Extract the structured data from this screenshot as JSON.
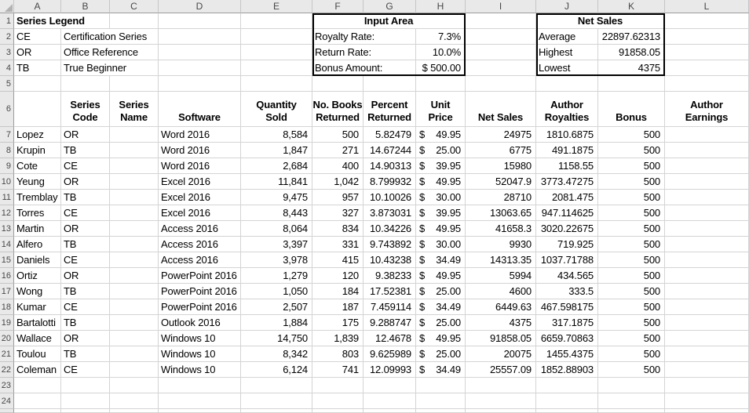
{
  "colors": {
    "header_bg": "#e9e9e9",
    "gridline": "#d4d4d4",
    "header_border": "#9d9d9d",
    "cell_text": "#000000",
    "summary_box_border": "#000000"
  },
  "sheet": {
    "column_letters": [
      "A",
      "B",
      "C",
      "D",
      "E",
      "F",
      "G",
      "H",
      "I",
      "J",
      "K",
      "L"
    ],
    "row_numbers": [
      1,
      2,
      3,
      4,
      5,
      6,
      7,
      8,
      9,
      10,
      11,
      12,
      13,
      14,
      15,
      16,
      17,
      18,
      19,
      20,
      21,
      22,
      23,
      24
    ]
  },
  "legend": {
    "title": "Series Legend",
    "entries": [
      {
        "code": "CE",
        "name": "Certification Series"
      },
      {
        "code": "OR",
        "name": "Office Reference"
      },
      {
        "code": "TB",
        "name": "True Beginner"
      }
    ]
  },
  "input_area": {
    "title": "Input Area",
    "rows": [
      {
        "label": "Royalty Rate:",
        "value": "7.3%"
      },
      {
        "label": "Return Rate:",
        "value": "10.0%"
      },
      {
        "label": "Bonus Amount:",
        "value": "$ 500.00"
      }
    ]
  },
  "net_sales": {
    "title": "Net Sales",
    "rows": [
      {
        "label": "Average",
        "value": "22897.62313"
      },
      {
        "label": "Highest",
        "value": "91858.05"
      },
      {
        "label": "Lowest",
        "value": "4375"
      }
    ]
  },
  "table": {
    "currency_symbol": "$",
    "headers": [
      {
        "col": "B",
        "lines": [
          "Series",
          "Code"
        ]
      },
      {
        "col": "C",
        "lines": [
          "Series",
          "Name"
        ]
      },
      {
        "col": "D",
        "lines": [
          "Software"
        ]
      },
      {
        "col": "E",
        "lines": [
          "Quantity",
          "Sold"
        ]
      },
      {
        "col": "F",
        "lines": [
          "No. Books",
          "Returned"
        ]
      },
      {
        "col": "G",
        "lines": [
          "Percent",
          "Returned"
        ]
      },
      {
        "col": "H",
        "lines": [
          "Unit",
          "Price"
        ]
      },
      {
        "col": "I",
        "lines": [
          "Net Sales"
        ]
      },
      {
        "col": "J",
        "lines": [
          "Author",
          "Royalties"
        ]
      },
      {
        "col": "K",
        "lines": [
          "Bonus"
        ]
      },
      {
        "col": "L",
        "lines": [
          "Author",
          "Earnings"
        ]
      }
    ],
    "rows": [
      {
        "author": "Lopez",
        "code": "OR",
        "software": "Word 2016",
        "quantity": "8,584",
        "returned": "500",
        "percent": "5.82479",
        "price": "49.95",
        "net_sales": "24975",
        "royalties": "1810.6875",
        "bonus": "500"
      },
      {
        "author": "Krupin",
        "code": "TB",
        "software": "Word 2016",
        "quantity": "1,847",
        "returned": "271",
        "percent": "14.67244",
        "price": "25.00",
        "net_sales": "6775",
        "royalties": "491.1875",
        "bonus": "500"
      },
      {
        "author": "Cote",
        "code": "CE",
        "software": "Word 2016",
        "quantity": "2,684",
        "returned": "400",
        "percent": "14.90313",
        "price": "39.95",
        "net_sales": "15980",
        "royalties": "1158.55",
        "bonus": "500"
      },
      {
        "author": "Yeung",
        "code": "OR",
        "software": "Excel 2016",
        "quantity": "11,841",
        "returned": "1,042",
        "percent": "8.799932",
        "price": "49.95",
        "net_sales": "52047.9",
        "royalties": "3773.47275",
        "bonus": "500"
      },
      {
        "author": "Tremblay",
        "code": "TB",
        "software": "Excel 2016",
        "quantity": "9,475",
        "returned": "957",
        "percent": "10.10026",
        "price": "30.00",
        "net_sales": "28710",
        "royalties": "2081.475",
        "bonus": "500"
      },
      {
        "author": "Torres",
        "code": "CE",
        "software": "Excel 2016",
        "quantity": "8,443",
        "returned": "327",
        "percent": "3.873031",
        "price": "39.95",
        "net_sales": "13063.65",
        "royalties": "947.114625",
        "bonus": "500"
      },
      {
        "author": "Martin",
        "code": "OR",
        "software": "Access 2016",
        "quantity": "8,064",
        "returned": "834",
        "percent": "10.34226",
        "price": "49.95",
        "net_sales": "41658.3",
        "royalties": "3020.22675",
        "bonus": "500"
      },
      {
        "author": "Alfero",
        "code": "TB",
        "software": "Access 2016",
        "quantity": "3,397",
        "returned": "331",
        "percent": "9.743892",
        "price": "30.00",
        "net_sales": "9930",
        "royalties": "719.925",
        "bonus": "500"
      },
      {
        "author": "Daniels",
        "code": "CE",
        "software": "Access 2016",
        "quantity": "3,978",
        "returned": "415",
        "percent": "10.43238",
        "price": "34.49",
        "net_sales": "14313.35",
        "royalties": "1037.71788",
        "bonus": "500"
      },
      {
        "author": "Ortiz",
        "code": "OR",
        "software": "PowerPoint 2016",
        "quantity": "1,279",
        "returned": "120",
        "percent": "9.38233",
        "price": "49.95",
        "net_sales": "5994",
        "royalties": "434.565",
        "bonus": "500"
      },
      {
        "author": "Wong",
        "code": "TB",
        "software": "PowerPoint 2016",
        "quantity": "1,050",
        "returned": "184",
        "percent": "17.52381",
        "price": "25.00",
        "net_sales": "4600",
        "royalties": "333.5",
        "bonus": "500"
      },
      {
        "author": "Kumar",
        "code": "CE",
        "software": "PowerPoint 2016",
        "quantity": "2,507",
        "returned": "187",
        "percent": "7.459114",
        "price": "34.49",
        "net_sales": "6449.63",
        "royalties": "467.598175",
        "bonus": "500"
      },
      {
        "author": "Bartalotti",
        "code": "TB",
        "software": "Outlook 2016",
        "quantity": "1,884",
        "returned": "175",
        "percent": "9.288747",
        "price": "25.00",
        "net_sales": "4375",
        "royalties": "317.1875",
        "bonus": "500"
      },
      {
        "author": "Wallace",
        "code": "OR",
        "software": "Windows 10",
        "quantity": "14,750",
        "returned": "1,839",
        "percent": "12.4678",
        "price": "49.95",
        "net_sales": "91858.05",
        "royalties": "6659.70863",
        "bonus": "500"
      },
      {
        "author": "Toulou",
        "code": "TB",
        "software": "Windows 10",
        "quantity": "8,342",
        "returned": "803",
        "percent": "9.625989",
        "price": "25.00",
        "net_sales": "20075",
        "royalties": "1455.4375",
        "bonus": "500"
      },
      {
        "author": "Coleman",
        "code": "CE",
        "software": "Windows 10",
        "quantity": "6,124",
        "returned": "741",
        "percent": "12.09993",
        "price": "34.49",
        "net_sales": "25557.09",
        "royalties": "1852.88903",
        "bonus": "500"
      }
    ]
  }
}
